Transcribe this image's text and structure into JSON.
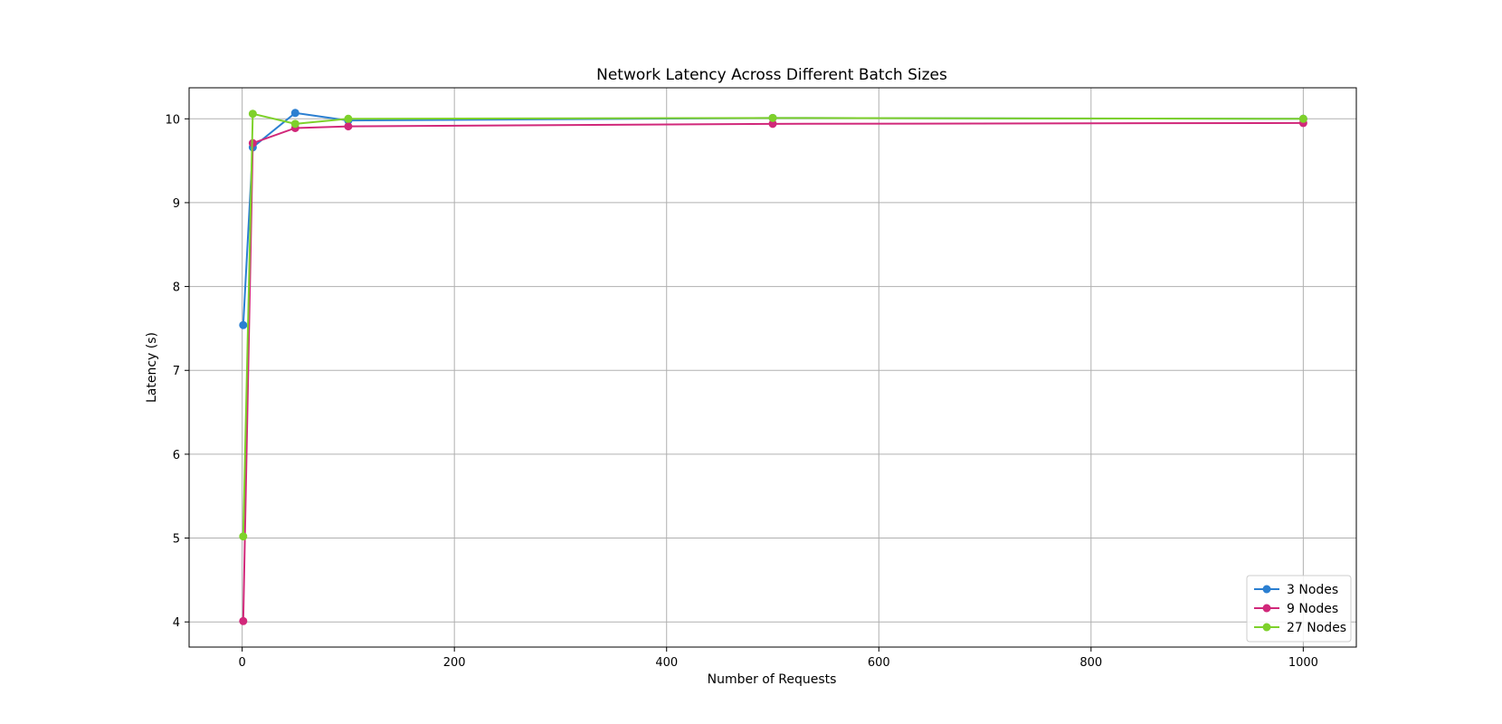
{
  "chart_data": {
    "type": "line",
    "title": "Network Latency Across Different Batch Sizes",
    "xlabel": "Number of Requests",
    "ylabel": "Latency (s)",
    "xlim": [
      -50,
      1050
    ],
    "ylim": [
      3.7,
      10.37
    ],
    "xticks": [
      0,
      200,
      400,
      600,
      800,
      1000
    ],
    "yticks": [
      4,
      5,
      6,
      7,
      8,
      9,
      10
    ],
    "grid": true,
    "legend_position": "bottom-right",
    "series": [
      {
        "name": "3 Nodes",
        "color": "#2b7fd1",
        "points": [
          [
            1,
            7.54
          ],
          [
            10,
            9.66
          ],
          [
            50,
            10.07
          ],
          [
            100,
            9.98
          ],
          [
            500,
            10.01
          ],
          [
            1000,
            10.0
          ]
        ]
      },
      {
        "name": "9 Nodes",
        "color": "#d1287a",
        "points": [
          [
            1,
            4.01
          ],
          [
            10,
            9.71
          ],
          [
            50,
            9.89
          ],
          [
            100,
            9.91
          ],
          [
            500,
            9.94
          ],
          [
            1000,
            9.95
          ]
        ]
      },
      {
        "name": "27 Nodes",
        "color": "#7ed12b",
        "points": [
          [
            1,
            5.02
          ],
          [
            10,
            10.06
          ],
          [
            50,
            9.94
          ],
          [
            100,
            10.0
          ],
          [
            500,
            10.01
          ],
          [
            1000,
            10.0
          ]
        ]
      }
    ]
  }
}
